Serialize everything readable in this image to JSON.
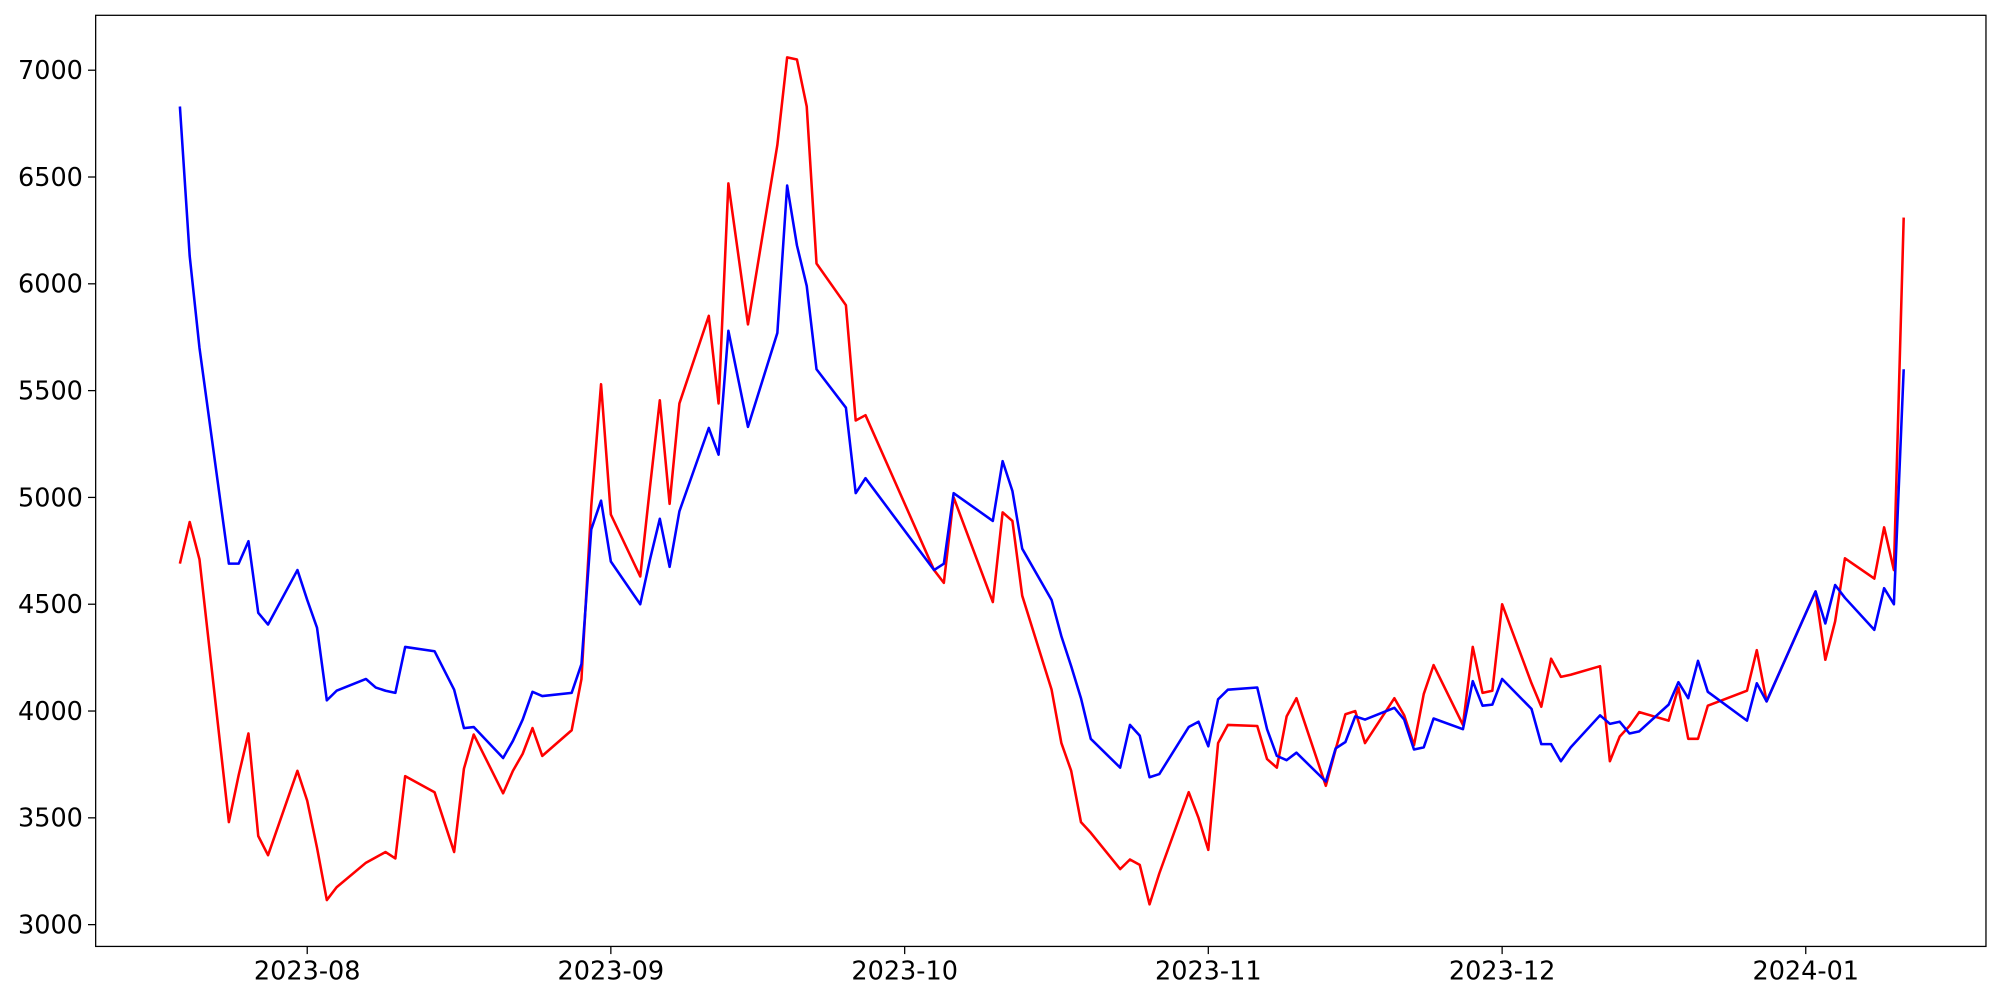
{
  "chart_data": {
    "type": "line",
    "x": [
      19557,
      19558,
      19559,
      19562,
      19563,
      19564,
      19565,
      19566,
      19569,
      19570,
      19571,
      19572,
      19573,
      19576,
      19577,
      19578,
      19579,
      19580,
      19583,
      19585,
      19586,
      19587,
      19590,
      19591,
      19592,
      19593,
      19594,
      19597,
      19598,
      19599,
      19600,
      19601,
      19604,
      19605,
      19606,
      19607,
      19608,
      19611,
      19612,
      19613,
      19615,
      19618,
      19619,
      19620,
      19621,
      19622,
      19625,
      19626,
      19627,
      19634,
      19635,
      19636,
      19640,
      19641,
      19642,
      19643,
      19646,
      19647,
      19648,
      19649,
      19650,
      19653,
      19654,
      19655,
      19656,
      19657,
      19660,
      19661,
      19662,
      19663,
      19664,
      19667,
      19668,
      19669,
      19670,
      19671,
      19674,
      19675,
      19676,
      19677,
      19678,
      19681,
      19682,
      19683,
      19684,
      19685,
      19688,
      19689,
      19690,
      19691,
      19692,
      19695,
      19696,
      19697,
      19698,
      19699,
      19702,
      19703,
      19704,
      19705,
      19706,
      19709,
      19710,
      19711,
      19712,
      19713,
      19717,
      19718,
      19719,
      19724,
      19725,
      19726,
      19727,
      19730,
      19731,
      19732,
      19733
    ],
    "series": [
      {
        "color": "#ff0000",
        "values": [
          4690,
          4885,
          4710,
          3480,
          3700,
          3895,
          3415,
          3325,
          3720,
          3580,
          3360,
          3115,
          3175,
          3290,
          3315,
          3340,
          3310,
          3695,
          3620,
          3340,
          3730,
          3890,
          3615,
          3720,
          3800,
          3920,
          3790,
          3910,
          4150,
          4960,
          5530,
          4920,
          4630,
          5050,
          5455,
          4970,
          5440,
          5850,
          5440,
          6470,
          5810,
          6650,
          7060,
          7050,
          6830,
          6095,
          5900,
          5360,
          5385,
          4660,
          4600,
          5000,
          4510,
          4930,
          4890,
          4540,
          4100,
          3850,
          3720,
          3480,
          3430,
          3260,
          3305,
          3280,
          3095,
          3240,
          3620,
          3500,
          3350,
          3850,
          3935,
          3930,
          3775,
          3735,
          3975,
          4060,
          3650,
          3820,
          3985,
          4000,
          3850,
          4060,
          3980,
          3840,
          4080,
          4215,
          3935,
          4300,
          4085,
          4095,
          4500,
          4130,
          4020,
          4245,
          4160,
          4170,
          4210,
          3765,
          3880,
          3930,
          3995,
          3955,
          4110,
          3870,
          3870,
          4025,
          4095,
          4285,
          4045,
          4560,
          4240,
          4420,
          4715,
          4620,
          4860,
          4660,
          6310
        ]
      },
      {
        "color": "#0000ff",
        "values": [
          6830,
          6130,
          5700,
          4690,
          4690,
          4795,
          4460,
          4405,
          4660,
          4520,
          4390,
          4050,
          4095,
          4150,
          4110,
          4095,
          4085,
          4300,
          4280,
          4100,
          3920,
          3925,
          3780,
          3860,
          3960,
          4090,
          4070,
          4085,
          4220,
          4850,
          4985,
          4700,
          4500,
          4710,
          4900,
          4675,
          4935,
          5325,
          5200,
          5780,
          5330,
          5770,
          6460,
          6180,
          5990,
          5600,
          5420,
          5020,
          5090,
          4660,
          4690,
          5020,
          4890,
          5170,
          5030,
          4760,
          4520,
          4350,
          4210,
          4060,
          3870,
          3735,
          3935,
          3885,
          3690,
          3705,
          3925,
          3950,
          3835,
          4055,
          4100,
          4110,
          3915,
          3790,
          3770,
          3805,
          3670,
          3825,
          3855,
          3975,
          3960,
          4015,
          3960,
          3820,
          3830,
          3965,
          3915,
          4140,
          4025,
          4030,
          4150,
          4010,
          3845,
          3845,
          3765,
          3830,
          3980,
          3940,
          3950,
          3895,
          3905,
          4030,
          4135,
          4060,
          4235,
          4090,
          3955,
          4130,
          4045,
          4560,
          4410,
          4590,
          4530,
          4380,
          4575,
          4500,
          5600
        ]
      }
    ],
    "xlim": [
      19548.4,
      19741.4
    ],
    "xticks": [
      {
        "value": 19570,
        "label": "2023-08"
      },
      {
        "value": 19601,
        "label": "2023-09"
      },
      {
        "value": 19631,
        "label": "2023-10"
      },
      {
        "value": 19662,
        "label": "2023-11"
      },
      {
        "value": 19692,
        "label": "2023-12"
      },
      {
        "value": 19723,
        "label": "2024-01"
      }
    ],
    "ylim": [
      2898,
      7257
    ],
    "yticks": [
      3000,
      3500,
      4000,
      4500,
      5000,
      5500,
      6000,
      6500,
      7000
    ]
  }
}
